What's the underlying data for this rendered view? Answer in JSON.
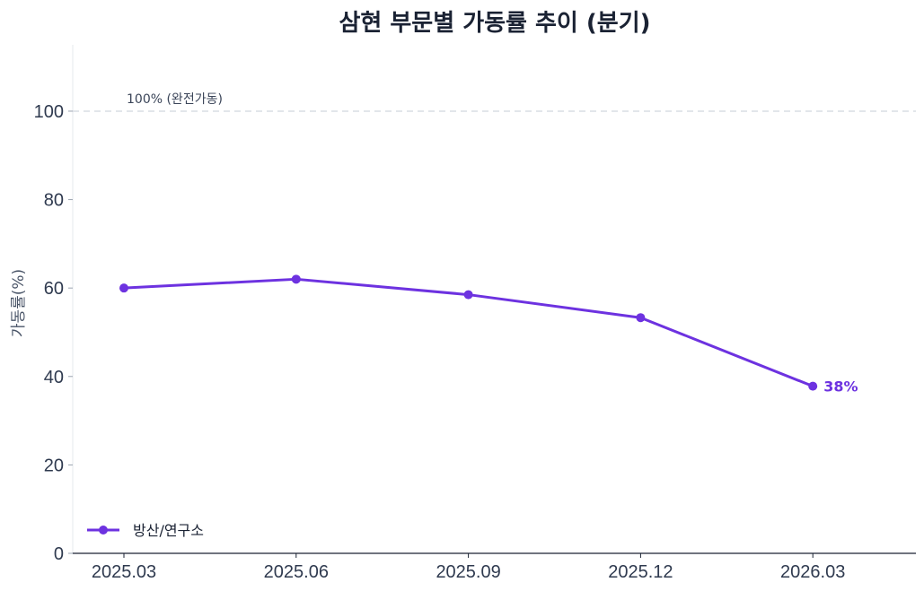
{
  "chart_data": {
    "type": "line",
    "title": "삼현 부문별 가동률 추이 (분기)",
    "xlabel": "",
    "ylabel": "가동률(%)",
    "categories": [
      "2025.03",
      "2025.06",
      "2025.09",
      "2025.12",
      "2026.03"
    ],
    "series": [
      {
        "name": "방산/연구소",
        "values": [
          60,
          62,
          58.5,
          53.3,
          37.8
        ],
        "color": "#6d32e0"
      }
    ],
    "ylim": [
      0,
      115
    ],
    "yticks": [
      0,
      20,
      40,
      60,
      80,
      100
    ],
    "reference_line": {
      "value": 100,
      "label": "100% (완전가동)",
      "color": "#d9dde3",
      "style": "dashed"
    },
    "end_label": "38%",
    "legend_position": "bottom-left",
    "grid": false
  }
}
